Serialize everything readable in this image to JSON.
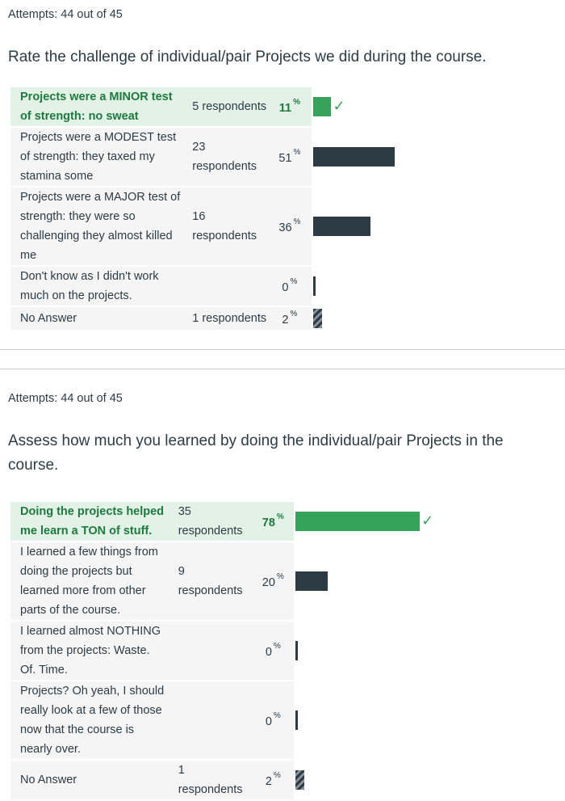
{
  "q1": {
    "attempts": "Attempts: 44 out of 45",
    "question": "Rate the challenge of individual/pair Projects we did during the course.",
    "answers": [
      {
        "text": "Projects were a MINOR test of strength: no sweat",
        "respondents": "5 respondents",
        "percent": "11",
        "fraction": 0.11,
        "correct": true
      },
      {
        "text": "Projects were a MODEST test of strength: they taxed my stamina some",
        "respondents": "23 respondents",
        "percent": "51",
        "fraction": 0.51
      },
      {
        "text": "Projects were a MAJOR test of strength: they were so challenging they almost killed me",
        "respondents": "16 respondents",
        "percent": "36",
        "fraction": 0.36
      },
      {
        "text": "Don't know as I didn't work much on the projects.",
        "respondents": "",
        "percent": "0",
        "fraction": 0
      },
      {
        "text": "No Answer",
        "respondents": "1 respondents",
        "percent": "2",
        "fraction": 0.02
      }
    ]
  },
  "q2": {
    "attempts": "Attempts: 44 out of 45",
    "question": "Assess how much you learned by doing the individual/pair Projects in the course.",
    "answers": [
      {
        "text": "Doing the projects helped me learn a TON of stuff.",
        "respondents": "35 respondents",
        "percent": "78",
        "fraction": 0.78,
        "correct": true
      },
      {
        "text": "I learned a few things from doing the projects but learned more from other parts of the course.",
        "respondents": "9 respondents",
        "percent": "20",
        "fraction": 0.2
      },
      {
        "text": "I learned almost NOTHING from the projects: Waste. Of. Time.",
        "respondents": "",
        "percent": "0",
        "fraction": 0
      },
      {
        "text": "Projects? Oh yeah, I should really look at a few of those now that the course is nearly over.",
        "respondents": "",
        "percent": "0",
        "fraction": 0
      },
      {
        "text": "No Answer",
        "respondents": "1 respondents",
        "percent": "2",
        "fraction": 0.02
      }
    ]
  },
  "percent_sign": "%",
  "colors": {
    "correct": "#35a35a",
    "bar": "#2d3b45",
    "correct_bg": "#e2f2e7"
  },
  "icons": {
    "correct_marker": "check-icon"
  }
}
